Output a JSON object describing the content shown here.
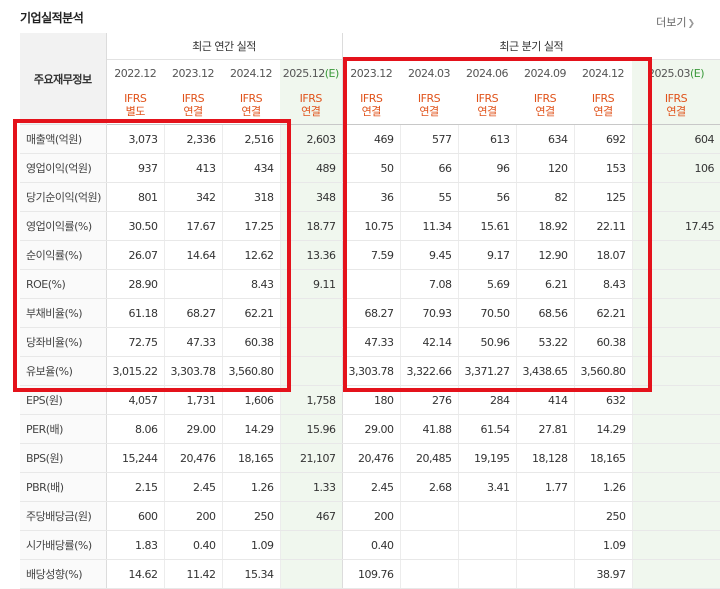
{
  "header": {
    "title": "기업실적분석",
    "more_label": "더보기"
  },
  "table": {
    "corner_label": "주요재무정보",
    "group_annual": "최근 연간 실적",
    "group_quarter": "최근 분기 실적",
    "columns": [
      {
        "period": "2022.12",
        "l1": "IFRS",
        "l2": "별도",
        "est": false
      },
      {
        "period": "2023.12",
        "l1": "IFRS",
        "l2": "연결",
        "est": false
      },
      {
        "period": "2024.12",
        "l1": "IFRS",
        "l2": "연결",
        "est": false
      },
      {
        "period": "2025.12(E)",
        "l1": "IFRS",
        "l2": "연결",
        "est": true
      },
      {
        "period": "2023.12",
        "l1": "IFRS",
        "l2": "연결",
        "est": false
      },
      {
        "period": "2024.03",
        "l1": "IFRS",
        "l2": "연결",
        "est": false
      },
      {
        "period": "2024.06",
        "l1": "IFRS",
        "l2": "연결",
        "est": false
      },
      {
        "period": "2024.09",
        "l1": "IFRS",
        "l2": "연결",
        "est": false
      },
      {
        "period": "2024.12",
        "l1": "IFRS",
        "l2": "연결",
        "est": false
      },
      {
        "period": "2025.03(E)",
        "l1": "IFRS",
        "l2": "연결",
        "est": true
      }
    ],
    "rows": [
      {
        "label": "매출액(억원)",
        "values": [
          "3,073",
          "2,336",
          "2,516",
          "2,603",
          "469",
          "577",
          "613",
          "634",
          "692",
          "604"
        ]
      },
      {
        "label": "영업이익(억원)",
        "values": [
          "937",
          "413",
          "434",
          "489",
          "50",
          "66",
          "96",
          "120",
          "153",
          "106"
        ]
      },
      {
        "label": "당기순이익(억원)",
        "values": [
          "801",
          "342",
          "318",
          "348",
          "36",
          "55",
          "56",
          "82",
          "125",
          ""
        ]
      },
      {
        "label": "영업이익률(%)",
        "values": [
          "30.50",
          "17.67",
          "17.25",
          "18.77",
          "10.75",
          "11.34",
          "15.61",
          "18.92",
          "22.11",
          "17.45"
        ]
      },
      {
        "label": "순이익률(%)",
        "values": [
          "26.07",
          "14.64",
          "12.62",
          "13.36",
          "7.59",
          "9.45",
          "9.17",
          "12.90",
          "18.07",
          ""
        ]
      },
      {
        "label": "ROE(%)",
        "values": [
          "28.90",
          "",
          "8.43",
          "9.11",
          "",
          "7.08",
          "5.69",
          "6.21",
          "8.43",
          ""
        ]
      },
      {
        "label": "부채비율(%)",
        "values": [
          "61.18",
          "68.27",
          "62.21",
          "",
          "68.27",
          "70.93",
          "70.50",
          "68.56",
          "62.21",
          ""
        ]
      },
      {
        "label": "당좌비율(%)",
        "values": [
          "72.75",
          "47.33",
          "60.38",
          "",
          "47.33",
          "42.14",
          "50.96",
          "53.22",
          "60.38",
          ""
        ]
      },
      {
        "label": "유보율(%)",
        "values": [
          "3,015.22",
          "3,303.78",
          "3,560.80",
          "",
          "3,303.78",
          "3,322.66",
          "3,371.27",
          "3,438.65",
          "3,560.80",
          ""
        ]
      },
      {
        "label": "EPS(원)",
        "values": [
          "4,057",
          "1,731",
          "1,606",
          "1,758",
          "180",
          "276",
          "284",
          "414",
          "632",
          ""
        ]
      },
      {
        "label": "PER(배)",
        "values": [
          "8.06",
          "29.00",
          "14.29",
          "15.96",
          "29.00",
          "41.88",
          "61.54",
          "27.81",
          "14.29",
          ""
        ]
      },
      {
        "label": "BPS(원)",
        "values": [
          "15,244",
          "20,476",
          "18,165",
          "21,107",
          "20,476",
          "20,485",
          "19,195",
          "18,128",
          "18,165",
          ""
        ]
      },
      {
        "label": "PBR(배)",
        "values": [
          "2.15",
          "2.45",
          "1.26",
          "1.33",
          "2.45",
          "2.68",
          "3.41",
          "1.77",
          "1.26",
          ""
        ]
      },
      {
        "label": "주당배당금(원)",
        "values": [
          "600",
          "200",
          "250",
          "467",
          "200",
          "",
          "",
          "",
          "250",
          ""
        ]
      },
      {
        "label": "시가배당률(%)",
        "values": [
          "1.83",
          "0.40",
          "1.09",
          "",
          "0.40",
          "",
          "",
          "",
          "1.09",
          ""
        ]
      },
      {
        "label": "배당성향(%)",
        "values": [
          "14.62",
          "11.42",
          "15.34",
          "",
          "109.76",
          "",
          "",
          "",
          "38.97",
          ""
        ]
      }
    ]
  },
  "colors": {
    "highlight": "#e4121b",
    "ifrs_text": "#e0531b",
    "estimate_bg": "#f0f7ee"
  }
}
